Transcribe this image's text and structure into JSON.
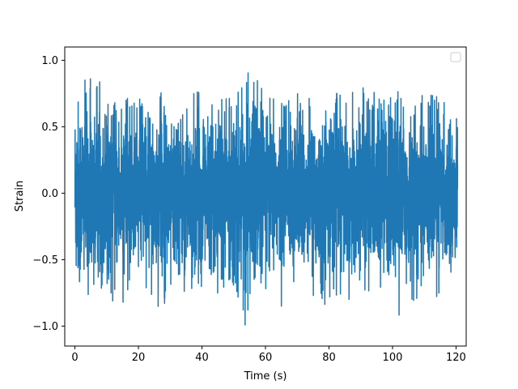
{
  "chart_data": {
    "type": "line",
    "title": "",
    "xlabel": "Time (s)",
    "ylabel": "Strain",
    "xlim": [
      -3.2,
      123.2
    ],
    "ylim": [
      -1.15,
      1.1
    ],
    "xticks": [
      0,
      20,
      40,
      60,
      80,
      100,
      120
    ],
    "xtick_labels": [
      "0",
      "20",
      "40",
      "60",
      "80",
      "100",
      "120"
    ],
    "yticks": [
      1.0,
      0.5,
      0.0,
      -0.5,
      -1.0
    ],
    "ytick_labels": [
      "1.0",
      "0.5",
      "0.0",
      "−0.5",
      "−1.0"
    ],
    "grid": false,
    "legend": {
      "position": "upper right",
      "entries": []
    },
    "series": [
      {
        "color": "#1f77b4",
        "x_start": 0,
        "x_end": 120.5,
        "envelope_x": [
          0,
          5,
          10,
          15,
          20,
          25,
          30,
          35,
          40,
          45,
          50,
          53.5,
          55,
          60,
          65,
          70,
          75,
          80,
          85,
          90,
          95,
          100,
          102,
          105,
          110,
          115,
          120.5
        ],
        "envelope_max": [
          0.89,
          0.95,
          0.75,
          0.72,
          0.7,
          0.8,
          0.7,
          0.72,
          0.78,
          0.7,
          0.72,
          0.82,
          1.0,
          0.72,
          0.7,
          0.75,
          0.7,
          0.78,
          0.72,
          0.8,
          0.75,
          0.85,
          0.8,
          0.72,
          0.75,
          0.72,
          0.55
        ],
        "envelope_min": [
          -0.9,
          -0.8,
          -0.75,
          -0.92,
          -0.75,
          -0.88,
          -0.8,
          -0.85,
          -0.8,
          -0.75,
          -0.7,
          -1.05,
          -0.95,
          -0.8,
          -0.85,
          -0.88,
          -0.8,
          -0.85,
          -0.78,
          -0.85,
          -0.8,
          -0.8,
          -0.98,
          -0.8,
          -0.82,
          -0.85,
          -0.5
        ]
      }
    ]
  }
}
